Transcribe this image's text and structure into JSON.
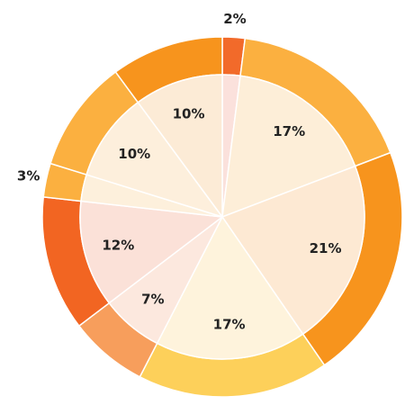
{
  "chart_data": {
    "type": "donut-pie",
    "categories": [
      null,
      null,
      null,
      null,
      null,
      null,
      null,
      null,
      null
    ],
    "values": [
      2,
      17,
      21,
      17,
      7,
      12,
      3,
      10,
      10
    ],
    "value_labels": [
      "2%",
      "17%",
      "21%",
      "17%",
      "7%",
      "12%",
      "3%",
      "10%",
      "10%"
    ],
    "colors": [
      "#f26a2a",
      "#fbb040",
      "#f7941d",
      "#fdd05a",
      "#f79e5c",
      "#f26522",
      "#fbb040",
      "#fbb040",
      "#f7941d"
    ],
    "inner_colors": [
      "#fbe1dc",
      "#fdeed8",
      "#fde9d3",
      "#fef3dc",
      "#fce8de",
      "#fbe1d8",
      "#fdf0dc",
      "#fdefdc",
      "#fcebd6"
    ]
  }
}
